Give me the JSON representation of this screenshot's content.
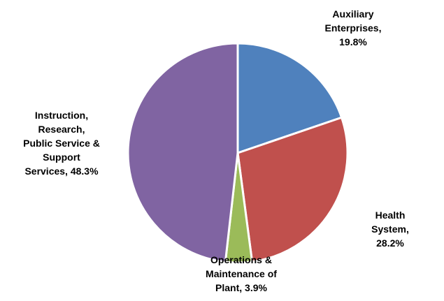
{
  "chart_data": {
    "type": "pie",
    "values": [
      19.8,
      28.2,
      3.9,
      48.3
    ],
    "value_labels": [
      "Auxiliary\nEnterprises,\n19.8%",
      "Health System,\n28.2%",
      "Operations &\nMaintenance of\nPlant, 3.9%",
      "Instruction,\nResearch,\nPublic Service &\nSupport\nServices, 48.3%"
    ],
    "colors": [
      "#4F81BD",
      "#C0504D",
      "#9BBB59",
      "#8064A2"
    ]
  }
}
